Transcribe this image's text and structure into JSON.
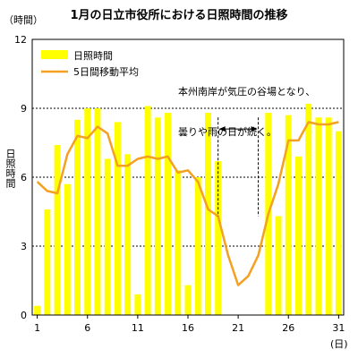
{
  "chart_data": {
    "type": "bar",
    "title": "1月の日立市役所における日照時間の推移",
    "yunit": "（時間）",
    "xunit": "(日)",
    "ylabel": "日照時間",
    "ylim": [
      0,
      12
    ],
    "yticks": [
      "0",
      "3",
      "6",
      "9",
      "12"
    ],
    "x": [
      1,
      2,
      3,
      4,
      5,
      6,
      7,
      8,
      9,
      10,
      11,
      12,
      13,
      14,
      15,
      16,
      17,
      18,
      19,
      20,
      21,
      22,
      23,
      24,
      25,
      26,
      27,
      28,
      29,
      30,
      31
    ],
    "xticks": [
      "1",
      "6",
      "11",
      "16",
      "21",
      "26",
      "31"
    ],
    "series": [
      {
        "name": "日照時間",
        "kind": "bar",
        "color": "#ffff00",
        "values": [
          0.4,
          4.6,
          7.4,
          5.7,
          8.5,
          9.0,
          9.0,
          6.8,
          8.4,
          7.0,
          0.9,
          9.1,
          8.6,
          8.8,
          6.3,
          1.3,
          6.0,
          8.8,
          6.7,
          0,
          0,
          0,
          0,
          8.8,
          4.3,
          8.7,
          6.9,
          9.2,
          8.6,
          8.6,
          8.0
        ]
      },
      {
        "name": "5日間移動平均",
        "kind": "line",
        "color": "#f4a020",
        "values": [
          5.8,
          5.4,
          5.3,
          7.0,
          7.8,
          7.7,
          8.2,
          7.9,
          6.5,
          6.5,
          6.8,
          6.9,
          6.8,
          6.9,
          6.2,
          6.3,
          5.8,
          4.6,
          4.3,
          2.6,
          1.3,
          1.7,
          2.6,
          4.4,
          5.7,
          7.6,
          7.6,
          8.4,
          8.3,
          8.3,
          8.4
        ]
      }
    ],
    "grid": "horizontal-dashed",
    "legend": "top-left",
    "annotation": {
      "text_lines": [
        "本州南岸が気圧の谷場となり、",
        "曇りや雨の日が続く。"
      ],
      "range_start_day": 19,
      "range_end_day": 23
    }
  }
}
